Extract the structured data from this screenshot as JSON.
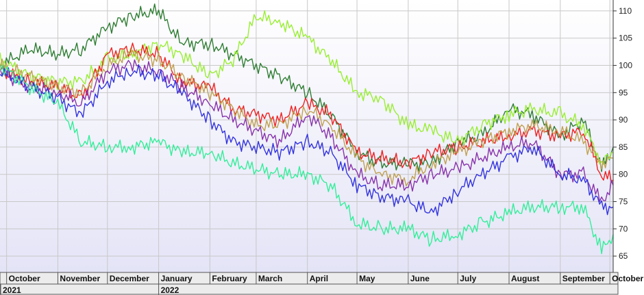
{
  "chart_data": {
    "type": "line",
    "title": "",
    "xlabel": "",
    "ylabel": "",
    "x_start": "2021-09-27",
    "x_end": "2022-10-03",
    "ylim": [
      62,
      112
    ],
    "y_ticks": [
      65,
      70,
      75,
      80,
      85,
      90,
      95,
      100,
      105,
      110
    ],
    "grid": true,
    "legend": "none",
    "months": [
      {
        "label": "October",
        "date": "2021-10-01"
      },
      {
        "label": "November",
        "date": "2021-11-01"
      },
      {
        "label": "December",
        "date": "2021-12-01"
      },
      {
        "label": "January",
        "date": "2022-01-01"
      },
      {
        "label": "February",
        "date": "2022-02-01"
      },
      {
        "label": "March",
        "date": "2022-03-01"
      },
      {
        "label": "April",
        "date": "2022-04-01"
      },
      {
        "label": "May",
        "date": "2022-05-01"
      },
      {
        "label": "June",
        "date": "2022-06-01"
      },
      {
        "label": "July",
        "date": "2022-07-01"
      },
      {
        "label": "August",
        "date": "2022-08-01"
      },
      {
        "label": "September",
        "date": "2022-09-01"
      },
      {
        "label": "October",
        "date": "2022-10-01"
      }
    ],
    "years": [
      {
        "label": "2021",
        "date": "2021-10-01"
      },
      {
        "label": "2022",
        "date": "2022-01-01"
      }
    ],
    "x": [
      "2021-09-27",
      "2021-10-15",
      "2021-11-01",
      "2021-11-15",
      "2021-12-01",
      "2021-12-15",
      "2022-01-01",
      "2022-01-15",
      "2022-02-01",
      "2022-02-15",
      "2022-03-01",
      "2022-03-15",
      "2022-04-01",
      "2022-04-15",
      "2022-05-01",
      "2022-05-15",
      "2022-06-01",
      "2022-06-15",
      "2022-07-01",
      "2022-07-15",
      "2022-08-01",
      "2022-08-15",
      "2022-09-01",
      "2022-09-15",
      "2022-09-26",
      "2022-10-03"
    ],
    "series": [
      {
        "color": "#2e7d32",
        "values": [
          100,
          103,
          102,
          103,
          107,
          109,
          110,
          104,
          104,
          102,
          100,
          98,
          95,
          91,
          84,
          82,
          82,
          82,
          86,
          87,
          92,
          91,
          87,
          90,
          81,
          85
        ]
      },
      {
        "color": "#99ee33",
        "values": [
          101,
          98,
          97,
          97,
          101,
          102,
          104,
          102,
          98,
          101,
          109,
          108,
          105,
          101,
          95,
          94,
          89,
          88,
          86,
          89,
          91,
          92,
          91,
          89,
          82,
          84
        ]
      },
      {
        "color": "#ee2222",
        "values": [
          99,
          97,
          96,
          94,
          102,
          103,
          102,
          97,
          96,
          92,
          91,
          90,
          93,
          91,
          84,
          83,
          82,
          84,
          85,
          86,
          87,
          88,
          87,
          88,
          80,
          79
        ]
      },
      {
        "color": "#c0a050",
        "values": [
          100,
          98,
          96,
          95,
          100,
          102,
          101,
          98,
          95,
          92,
          89,
          89,
          92,
          89,
          83,
          80,
          79,
          82,
          84,
          86,
          88,
          89,
          88,
          86,
          82,
          83
        ]
      },
      {
        "color": "#8833aa",
        "values": [
          99,
          96,
          95,
          93,
          99,
          100,
          99,
          96,
          93,
          90,
          88,
          86,
          91,
          87,
          80,
          78,
          78,
          80,
          81,
          83,
          85,
          86,
          80,
          80,
          75,
          78
        ]
      },
      {
        "color": "#3333dd",
        "values": [
          99,
          96,
          94,
          91,
          97,
          99,
          98,
          95,
          90,
          86,
          85,
          84,
          86,
          84,
          78,
          76,
          75,
          73,
          77,
          80,
          83,
          85,
          80,
          79,
          74,
          74
        ]
      },
      {
        "color": "#33ee99",
        "values": [
          100,
          96,
          93,
          86,
          85,
          85,
          86,
          84,
          84,
          82,
          81,
          80,
          80,
          78,
          71,
          70,
          70,
          68,
          69,
          71,
          73,
          74,
          74,
          74,
          66,
          69
        ]
      }
    ]
  }
}
